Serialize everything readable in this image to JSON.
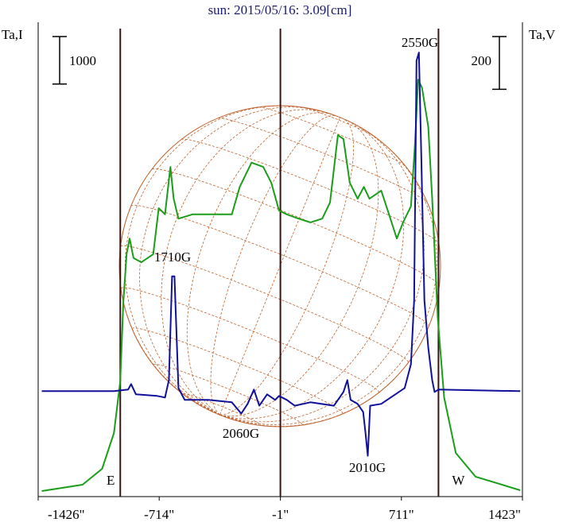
{
  "chart_data": {
    "type": "line",
    "title": "sun: 2015/05/16: 3.09[cm]",
    "y_label": "Ta,I",
    "y2_label": "Ta,V",
    "xlim": [
      -1426,
      1423
    ],
    "xticks": [
      {
        "value": -1426,
        "label": "-1426\""
      },
      {
        "value": -714,
        "label": "-714\""
      },
      {
        "value": -1,
        "label": "-1\""
      },
      {
        "value": 711,
        "label": "711\""
      },
      {
        "value": 1423,
        "label": "1423\""
      }
    ],
    "ylim": [
      0,
      10000
    ],
    "y2lim": [
      -400,
      1400
    ],
    "scale_bars": [
      {
        "value": 1000,
        "axis": "y"
      },
      {
        "value": 200,
        "axis": "y2"
      }
    ],
    "vlines": [
      -943,
      -1,
      929
    ],
    "limb_labels": [
      "E",
      "W"
    ],
    "annotations": [
      "1710G",
      "2550G",
      "2060G",
      "2010G"
    ],
    "series": [
      {
        "color": "#1a9e1a",
        "x": [
          -1405,
          -1165,
          -1050,
          -980,
          -943,
          -925,
          -906,
          -888,
          -865,
          -819,
          -749,
          -717,
          -680,
          -648,
          -629,
          -601,
          -518,
          -425,
          -287,
          -240,
          -171,
          -102,
          -55,
          -9,
          37,
          106,
          176,
          245,
          291,
          337,
          370,
          407,
          453,
          490,
          523,
          592,
          638,
          684,
          721,
          767,
          791,
          809,
          832,
          869,
          892,
          925,
          962,
          1031,
          1147,
          1410
        ],
        "values": [
          117,
          251,
          586,
          1340,
          2430,
          4100,
          5110,
          5440,
          5030,
          4940,
          5110,
          6080,
          5950,
          6950,
          6280,
          5860,
          5950,
          5950,
          5950,
          6530,
          7040,
          6950,
          6620,
          6030,
          5950,
          5860,
          5780,
          5860,
          6200,
          7620,
          7540,
          6620,
          6280,
          6530,
          6280,
          6450,
          5950,
          5440,
          5780,
          6120,
          7450,
          8790,
          8620,
          7790,
          6280,
          3770,
          2090,
          920,
          420,
          134
        ]
      },
      {
        "color": "#10109a",
        "axis": "y2",
        "x": [
          -1405,
          -980,
          -897,
          -879,
          -851,
          -726,
          -680,
          -657,
          -638,
          -624,
          -601,
          -564,
          -425,
          -287,
          -231,
          -194,
          -157,
          -125,
          -79,
          -32,
          -9,
          37,
          83,
          176,
          314,
          370,
          393,
          412,
          453,
          486,
          499,
          513,
          527,
          592,
          730,
          767,
          786,
          800,
          814,
          828,
          846,
          869,
          892,
          906,
          929,
          1410
        ],
        "values": [
          0,
          0,
          6,
          27,
          -12,
          -18,
          -24,
          42,
          436,
          436,
          12,
          -33,
          -33,
          -42,
          -85,
          -48,
          6,
          -55,
          -12,
          -33,
          -18,
          -33,
          -55,
          -42,
          -55,
          -3,
          42,
          -33,
          -48,
          -79,
          -155,
          -245,
          -55,
          -48,
          12,
          103,
          345,
          1254,
          1285,
          891,
          345,
          164,
          42,
          -3,
          6,
          0
        ]
      }
    ]
  }
}
